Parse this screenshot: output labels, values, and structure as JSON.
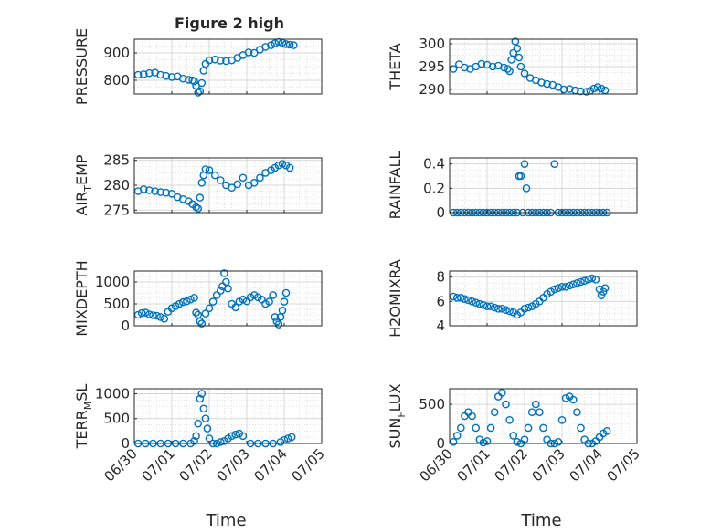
{
  "figure": {
    "title": "Figure 2 high",
    "marker_color": "#0072BD",
    "x_ticks": [
      "06/30",
      "07/01",
      "07/02",
      "07/03",
      "07/04",
      "07/05"
    ],
    "x_label": "Time",
    "grid": true
  },
  "chart_data": [
    {
      "type": "scatter",
      "title": "Figure 2 high",
      "ylabel": "PRESSURE",
      "ylim": [
        750,
        950
      ],
      "yticks": [
        800,
        900
      ],
      "xlim": [
        0,
        5
      ],
      "x": [
        0.1,
        0.25,
        0.4,
        0.55,
        0.7,
        0.85,
        1.0,
        1.15,
        1.3,
        1.45,
        1.55,
        1.6,
        1.65,
        1.7,
        1.75,
        1.8,
        1.85,
        1.9,
        2.0,
        2.15,
        2.3,
        2.45,
        2.6,
        2.75,
        2.9,
        3.05,
        3.2,
        3.35,
        3.5,
        3.65,
        3.75,
        3.85,
        3.95,
        4.05,
        4.15,
        4.25
      ],
      "y": [
        820,
        822,
        826,
        828,
        820,
        816,
        812,
        814,
        806,
        802,
        800,
        796,
        780,
        755,
        760,
        790,
        835,
        860,
        873,
        876,
        872,
        870,
        873,
        882,
        892,
        902,
        900,
        912,
        922,
        928,
        935,
        940,
        937,
        932,
        930,
        928
      ]
    },
    {
      "type": "scatter",
      "ylabel": "THETA",
      "ylim": [
        289,
        301
      ],
      "yticks": [
        290,
        295,
        300
      ],
      "xlim": [
        0,
        5
      ],
      "x": [
        0.1,
        0.25,
        0.4,
        0.55,
        0.7,
        0.85,
        1.0,
        1.15,
        1.3,
        1.45,
        1.55,
        1.6,
        1.65,
        1.7,
        1.75,
        1.8,
        1.85,
        1.9,
        2.0,
        2.15,
        2.3,
        2.45,
        2.6,
        2.75,
        2.9,
        3.05,
        3.2,
        3.35,
        3.5,
        3.65,
        3.75,
        3.85,
        3.95,
        4.05,
        4.15
      ],
      "y": [
        294.5,
        295.5,
        294.8,
        294.5,
        295.0,
        295.6,
        295.4,
        295.0,
        295.2,
        294.8,
        294.5,
        294.0,
        296.5,
        298.0,
        300.5,
        299.0,
        297.0,
        295.0,
        293.5,
        292.5,
        292.0,
        291.5,
        291.2,
        291.0,
        290.5,
        290.0,
        290.1,
        289.8,
        289.6,
        289.5,
        289.7,
        290.2,
        290.5,
        290.2,
        289.8
      ]
    },
    {
      "type": "scatter",
      "ylabel": "AIR_TEMP",
      "ylim": [
        274.5,
        285.5
      ],
      "yticks": [
        275,
        280,
        285
      ],
      "xlim": [
        0,
        5
      ],
      "x": [
        0.1,
        0.25,
        0.4,
        0.55,
        0.7,
        0.85,
        1.0,
        1.15,
        1.3,
        1.45,
        1.55,
        1.65,
        1.7,
        1.75,
        1.8,
        1.85,
        1.9,
        2.0,
        2.15,
        2.3,
        2.45,
        2.6,
        2.75,
        2.9,
        3.05,
        3.2,
        3.35,
        3.5,
        3.65,
        3.75,
        3.85,
        3.95,
        4.05,
        4.15
      ],
      "y": [
        278.8,
        279.2,
        279.0,
        278.8,
        278.6,
        278.5,
        278.3,
        277.6,
        277.2,
        276.8,
        276.2,
        275.6,
        275.3,
        277.5,
        280.5,
        282.0,
        283.2,
        283.0,
        282.0,
        281.0,
        280.0,
        279.5,
        280.2,
        281.5,
        280.0,
        280.5,
        281.5,
        282.5,
        283.0,
        283.5,
        284.0,
        284.3,
        284.0,
        283.5
      ]
    },
    {
      "type": "scatter",
      "ylabel": "RAINFALL",
      "ylim": [
        0,
        0.45
      ],
      "yticks": [
        0,
        0.2,
        0.4
      ],
      "xlim": [
        0,
        5
      ],
      "x": [
        0.1,
        0.2,
        0.3,
        0.4,
        0.5,
        0.6,
        0.7,
        0.8,
        0.9,
        1.0,
        1.1,
        1.2,
        1.3,
        1.4,
        1.5,
        1.6,
        1.7,
        1.8,
        1.85,
        1.9,
        1.95,
        2.0,
        2.05,
        2.1,
        2.2,
        2.3,
        2.4,
        2.5,
        2.6,
        2.7,
        2.8,
        2.9,
        3.0,
        3.1,
        3.2,
        3.3,
        3.4,
        3.5,
        3.6,
        3.7,
        3.8,
        3.9,
        4.0,
        4.1,
        4.2
      ],
      "y": [
        0,
        0,
        0,
        0,
        0,
        0,
        0,
        0,
        0,
        0,
        0,
        0,
        0,
        0,
        0,
        0,
        0,
        0,
        0.3,
        0.3,
        0,
        0.4,
        0.2,
        0,
        0,
        0,
        0,
        0,
        0,
        0,
        0.4,
        0,
        0,
        0,
        0,
        0,
        0,
        0,
        0,
        0,
        0,
        0,
        0,
        0,
        0
      ]
    },
    {
      "type": "scatter",
      "ylabel": "MIXDEPTH",
      "ylim": [
        0,
        1250
      ],
      "yticks": [
        0,
        500,
        1000
      ],
      "xlim": [
        0,
        5
      ],
      "x": [
        0.1,
        0.2,
        0.3,
        0.4,
        0.5,
        0.6,
        0.7,
        0.8,
        0.9,
        1.0,
        1.1,
        1.2,
        1.3,
        1.4,
        1.5,
        1.6,
        1.65,
        1.7,
        1.75,
        1.8,
        1.9,
        2.0,
        2.1,
        2.2,
        2.3,
        2.35,
        2.4,
        2.45,
        2.5,
        2.6,
        2.7,
        2.8,
        2.9,
        3.0,
        3.1,
        3.2,
        3.3,
        3.4,
        3.5,
        3.6,
        3.7,
        3.75,
        3.8,
        3.85,
        3.9,
        3.95,
        4.0,
        4.05
      ],
      "y": [
        250,
        290,
        300,
        260,
        240,
        230,
        200,
        160,
        320,
        400,
        450,
        500,
        540,
        560,
        600,
        640,
        300,
        250,
        100,
        50,
        280,
        400,
        550,
        700,
        800,
        900,
        1200,
        1000,
        850,
        500,
        420,
        550,
        600,
        560,
        650,
        700,
        650,
        600,
        500,
        550,
        700,
        200,
        100,
        30,
        200,
        350,
        550,
        750
      ]
    },
    {
      "type": "scatter",
      "ylabel": "H2OMIXRA",
      "ylim": [
        4,
        8.5
      ],
      "yticks": [
        4,
        6,
        8
      ],
      "xlim": [
        0,
        5
      ],
      "x": [
        0.1,
        0.2,
        0.3,
        0.4,
        0.5,
        0.6,
        0.7,
        0.8,
        0.9,
        1.0,
        1.1,
        1.2,
        1.3,
        1.4,
        1.5,
        1.6,
        1.7,
        1.8,
        1.9,
        2.0,
        2.1,
        2.2,
        2.3,
        2.4,
        2.5,
        2.6,
        2.7,
        2.8,
        2.9,
        3.0,
        3.1,
        3.2,
        3.3,
        3.4,
        3.5,
        3.6,
        3.7,
        3.8,
        3.9,
        4.0,
        4.05,
        4.1,
        4.15
      ],
      "y": [
        6.4,
        6.3,
        6.3,
        6.2,
        6.1,
        6.0,
        5.9,
        5.8,
        5.7,
        5.6,
        5.6,
        5.5,
        5.4,
        5.4,
        5.3,
        5.2,
        5.1,
        4.9,
        5.1,
        5.4,
        5.5,
        5.6,
        5.8,
        6.0,
        6.3,
        6.6,
        6.8,
        7.0,
        7.1,
        7.2,
        7.2,
        7.3,
        7.4,
        7.5,
        7.6,
        7.7,
        7.8,
        7.9,
        7.8,
        7.0,
        6.5,
        6.8,
        7.1
      ]
    },
    {
      "type": "scatter",
      "ylabel": "TERR_MSL",
      "ylim": [
        0,
        1100
      ],
      "yticks": [
        0,
        500,
        1000
      ],
      "xlim": [
        0,
        5
      ],
      "x": [
        0.1,
        0.3,
        0.5,
        0.7,
        0.9,
        1.1,
        1.3,
        1.5,
        1.6,
        1.65,
        1.7,
        1.75,
        1.8,
        1.85,
        1.9,
        1.95,
        2.0,
        2.1,
        2.2,
        2.3,
        2.4,
        2.5,
        2.6,
        2.7,
        2.8,
        2.9,
        3.1,
        3.3,
        3.5,
        3.7,
        3.9,
        4.0,
        4.1,
        4.2
      ],
      "y": [
        0,
        0,
        0,
        0,
        0,
        0,
        0,
        0,
        50,
        150,
        400,
        900,
        1000,
        700,
        500,
        300,
        100,
        0,
        0,
        30,
        50,
        100,
        150,
        180,
        200,
        150,
        0,
        0,
        0,
        0,
        30,
        70,
        100,
        130
      ]
    },
    {
      "type": "scatter",
      "ylabel": "SUN_FLUX",
      "ylim": [
        0,
        700
      ],
      "yticks": [
        0,
        500
      ],
      "xlim": [
        0,
        5
      ],
      "x": [
        0.1,
        0.2,
        0.3,
        0.4,
        0.5,
        0.6,
        0.7,
        0.8,
        0.9,
        1.0,
        1.1,
        1.2,
        1.3,
        1.4,
        1.5,
        1.6,
        1.7,
        1.8,
        1.9,
        2.0,
        2.1,
        2.2,
        2.3,
        2.4,
        2.5,
        2.6,
        2.7,
        2.8,
        2.9,
        3.0,
        3.1,
        3.2,
        3.3,
        3.4,
        3.5,
        3.6,
        3.7,
        3.8,
        3.9,
        4.0,
        4.1,
        4.2
      ],
      "y": [
        20,
        100,
        200,
        350,
        400,
        350,
        200,
        50,
        10,
        30,
        200,
        400,
        600,
        650,
        500,
        300,
        100,
        20,
        0,
        50,
        200,
        400,
        500,
        400,
        200,
        50,
        0,
        0,
        20,
        300,
        580,
        600,
        560,
        400,
        200,
        50,
        0,
        0,
        30,
        80,
        130,
        160
      ]
    }
  ]
}
